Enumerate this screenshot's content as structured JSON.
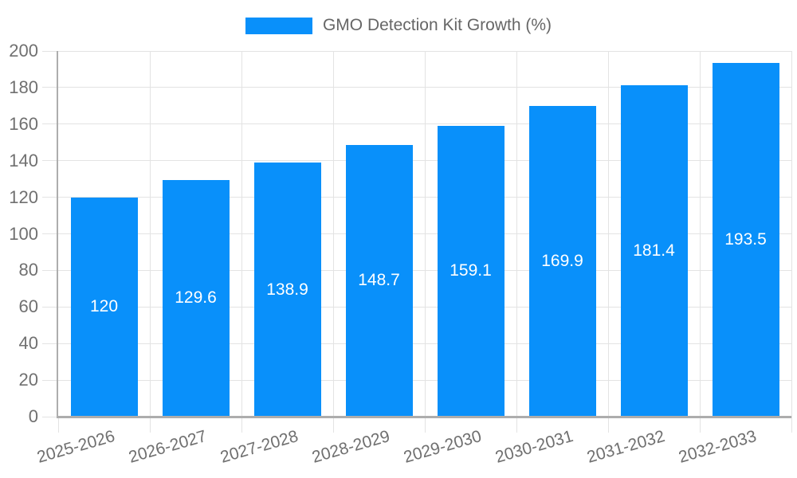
{
  "chart_data": {
    "type": "bar",
    "title": "GMO Detection Kit Growth (%)",
    "categories": [
      "2025-2026",
      "2026-2027",
      "2027-2028",
      "2028-2029",
      "2029-2030",
      "2030-2031",
      "2031-2032",
      "2032-2033"
    ],
    "values": [
      120,
      129.6,
      138.9,
      148.7,
      159.1,
      169.9,
      181.4,
      193.5
    ],
    "xlabel": "",
    "ylabel": "",
    "ylim": [
      0,
      200
    ],
    "yticks": [
      0,
      20,
      40,
      60,
      80,
      100,
      120,
      140,
      160,
      180,
      200
    ],
    "grid": true,
    "legend": {
      "position": "top",
      "label": "GMO Detection Kit Growth (%)"
    },
    "bar_color": "#0990fa",
    "bar_label_color": "#ffffff",
    "axis_text_color": "#707070",
    "legend_text_color": "#666666",
    "grid_color": "#e3e3e3",
    "axis_line_color": "#adadad",
    "x_label_rotation_deg": -16
  }
}
